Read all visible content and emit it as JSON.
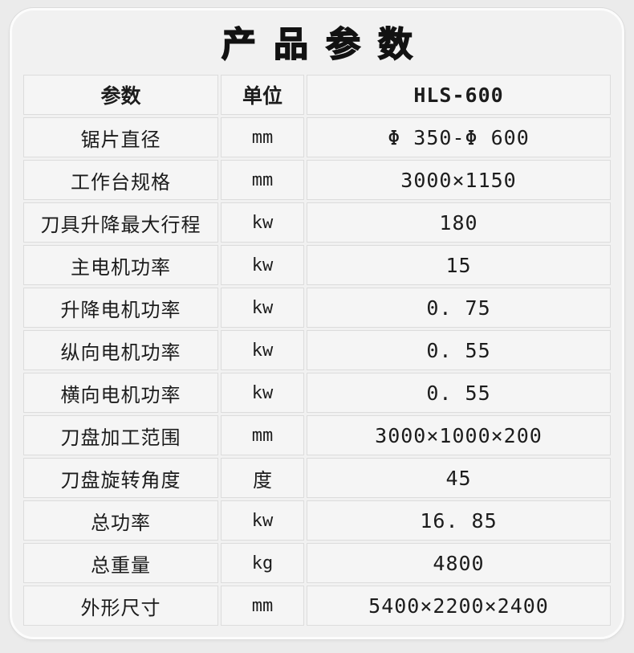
{
  "title": "产品参数",
  "table": {
    "headers": [
      "参数",
      "单位",
      "HLS-600"
    ],
    "rows": [
      {
        "param": "锯片直径",
        "unit": "mm",
        "value": "Φ 350-Φ 600"
      },
      {
        "param": "工作台规格",
        "unit": "mm",
        "value": "3000×1150"
      },
      {
        "param": "刀具升降最大行程",
        "unit": "kw",
        "value": "180"
      },
      {
        "param": "主电机功率",
        "unit": "kw",
        "value": "15"
      },
      {
        "param": "升降电机功率",
        "unit": "kw",
        "value": "0. 75"
      },
      {
        "param": "纵向电机功率",
        "unit": "kw",
        "value": "0. 55"
      },
      {
        "param": "横向电机功率",
        "unit": "kw",
        "value": "0. 55"
      },
      {
        "param": "刀盘加工范围",
        "unit": "mm",
        "value": "3000×1000×200"
      },
      {
        "param": "刀盘旋转角度",
        "unit": "度",
        "value": "45"
      },
      {
        "param": "总功率",
        "unit": "kw",
        "value": "16. 85"
      },
      {
        "param": "总重量",
        "unit": "kg",
        "value": "4800"
      },
      {
        "param": "外形尺寸",
        "unit": "mm",
        "value": "5400×2200×2400"
      }
    ]
  },
  "colors": {
    "page_bg": "#ebebeb",
    "card_bg": "#f1f1f1",
    "card_border": "#fcfcfc",
    "cell_bg": "#f5f5f5",
    "cell_border": "#dcdcdc",
    "text": "#1c1c1c"
  }
}
